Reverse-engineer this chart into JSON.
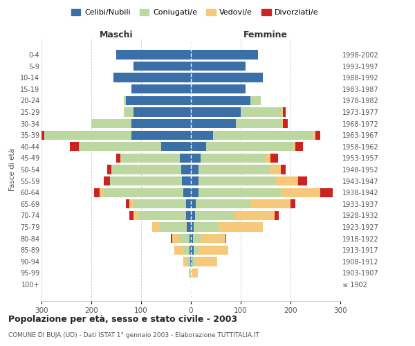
{
  "age_groups": [
    "100+",
    "95-99",
    "90-94",
    "85-89",
    "80-84",
    "75-79",
    "70-74",
    "65-69",
    "60-64",
    "55-59",
    "50-54",
    "45-49",
    "40-44",
    "35-39",
    "30-34",
    "25-29",
    "20-24",
    "15-19",
    "10-14",
    "5-9",
    "0-4"
  ],
  "birth_years": [
    "≤ 1902",
    "1903-1907",
    "1908-1912",
    "1913-1917",
    "1918-1922",
    "1923-1927",
    "1928-1932",
    "1933-1937",
    "1938-1942",
    "1943-1947",
    "1948-1952",
    "1953-1957",
    "1958-1962",
    "1963-1967",
    "1968-1972",
    "1973-1977",
    "1978-1982",
    "1983-1987",
    "1988-1992",
    "1993-1997",
    "1998-2002"
  ],
  "males": {
    "celibi": [
      0,
      0,
      2,
      3,
      3,
      8,
      10,
      10,
      15,
      18,
      20,
      22,
      60,
      120,
      120,
      115,
      130,
      120,
      155,
      115,
      150
    ],
    "coniugati": [
      0,
      2,
      5,
      12,
      20,
      55,
      95,
      105,
      160,
      145,
      140,
      120,
      165,
      175,
      80,
      20,
      5,
      0,
      0,
      0,
      0
    ],
    "vedovi": [
      0,
      2,
      8,
      18,
      15,
      15,
      10,
      8,
      8,
      0,
      0,
      0,
      0,
      0,
      0,
      0,
      0,
      0,
      0,
      0,
      0
    ],
    "divorziati": [
      0,
      0,
      0,
      0,
      2,
      0,
      8,
      8,
      12,
      12,
      8,
      8,
      18,
      5,
      0,
      0,
      0,
      0,
      0,
      0,
      0
    ]
  },
  "females": {
    "nubili": [
      0,
      0,
      3,
      5,
      4,
      5,
      8,
      10,
      15,
      15,
      15,
      20,
      30,
      45,
      90,
      100,
      120,
      110,
      145,
      110,
      135
    ],
    "coniugate": [
      0,
      2,
      5,
      10,
      15,
      50,
      80,
      110,
      165,
      155,
      145,
      130,
      175,
      200,
      90,
      80,
      20,
      0,
      0,
      0,
      0
    ],
    "vedove": [
      0,
      12,
      45,
      60,
      50,
      90,
      80,
      80,
      80,
      45,
      20,
      10,
      5,
      5,
      5,
      5,
      0,
      0,
      0,
      0,
      0
    ],
    "divorziate": [
      0,
      0,
      0,
      0,
      2,
      0,
      8,
      10,
      25,
      18,
      10,
      15,
      15,
      10,
      10,
      5,
      0,
      0,
      0,
      0,
      0
    ]
  },
  "colors": {
    "celibi": "#3B6FA8",
    "coniugati": "#BDD7A0",
    "vedovi": "#F5C87A",
    "divorziati": "#CC2222"
  },
  "legend_labels": [
    "Celibi/Nubili",
    "Coniugati/e",
    "Vedovi/e",
    "Divorziati/e"
  ],
  "title": "Popolazione per età, sesso e stato civile - 2003",
  "subtitle": "COMUNE DI BUJA (UD) - Dati ISTAT 1° gennaio 2003 - Elaborazione TUTTITALIA.IT",
  "xlabel_left": "Maschi",
  "xlabel_right": "Femmine",
  "ylabel_left": "Fasce di età",
  "xlim": 300,
  "background_color": "#ffffff",
  "grid_color": "#cccccc",
  "bar_height": 0.8
}
